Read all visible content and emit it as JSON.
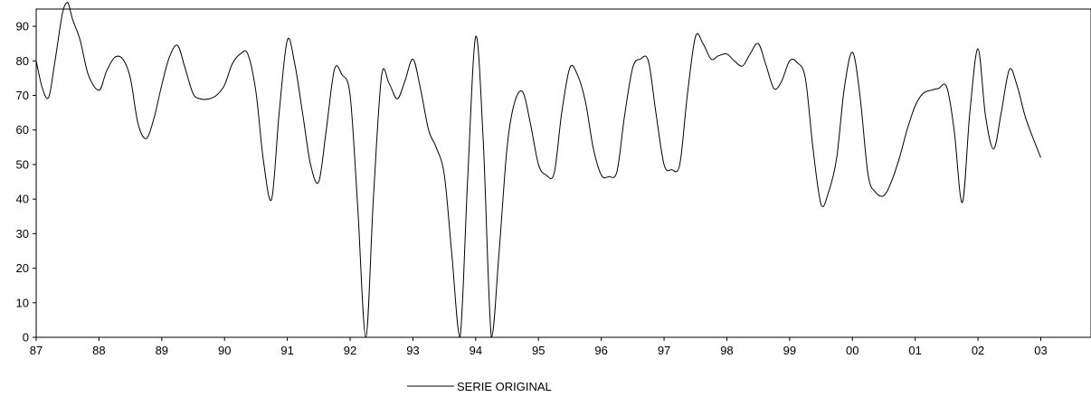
{
  "chart_data": {
    "type": "line",
    "title": "",
    "xlabel": "",
    "ylabel": "",
    "ylim": [
      0,
      95
    ],
    "xlim": [
      1987,
      2003.8
    ],
    "x_ticks": [
      {
        "x": 1987,
        "label": "87"
      },
      {
        "x": 1988,
        "label": "88"
      },
      {
        "x": 1989,
        "label": "89"
      },
      {
        "x": 1990,
        "label": "90"
      },
      {
        "x": 1991,
        "label": "91"
      },
      {
        "x": 1992,
        "label": "92"
      },
      {
        "x": 1993,
        "label": "93"
      },
      {
        "x": 1994,
        "label": "94"
      },
      {
        "x": 1995,
        "label": "95"
      },
      {
        "x": 1996,
        "label": "96"
      },
      {
        "x": 1997,
        "label": "97"
      },
      {
        "x": 1998,
        "label": "98"
      },
      {
        "x": 1999,
        "label": "99"
      },
      {
        "x": 2000,
        "label": "00"
      },
      {
        "x": 2001,
        "label": "01"
      },
      {
        "x": 2002,
        "label": "02"
      },
      {
        "x": 2003,
        "label": "03"
      }
    ],
    "y_ticks": [
      0,
      10,
      20,
      30,
      40,
      50,
      60,
      70,
      80,
      90
    ],
    "grid": false,
    "legend": {
      "position": "bottom-center",
      "entries": [
        "SERIE ORIGINAL"
      ]
    },
    "series": [
      {
        "name": "SERIE ORIGINAL",
        "color": "#000000",
        "x": [
          1987.0,
          1987.1,
          1987.2,
          1987.3,
          1987.42,
          1987.5,
          1987.58,
          1987.7,
          1987.83,
          1988.0,
          1988.12,
          1988.25,
          1988.38,
          1988.5,
          1988.62,
          1988.75,
          1988.87,
          1989.0,
          1989.12,
          1989.25,
          1989.37,
          1989.5,
          1989.62,
          1989.75,
          1989.87,
          1990.0,
          1990.12,
          1990.25,
          1990.37,
          1990.5,
          1990.62,
          1990.75,
          1990.87,
          1991.0,
          1991.12,
          1991.25,
          1991.37,
          1991.5,
          1991.62,
          1991.75,
          1991.87,
          1992.0,
          1992.12,
          1992.25,
          1992.37,
          1992.5,
          1992.62,
          1992.75,
          1992.87,
          1993.0,
          1993.12,
          1993.25,
          1993.37,
          1993.5,
          1993.62,
          1993.75,
          1993.87,
          1994.0,
          1994.12,
          1994.25,
          1994.37,
          1994.5,
          1994.62,
          1994.75,
          1994.87,
          1995.0,
          1995.12,
          1995.25,
          1995.37,
          1995.5,
          1995.62,
          1995.75,
          1995.87,
          1996.0,
          1996.12,
          1996.25,
          1996.37,
          1996.5,
          1996.62,
          1996.75,
          1996.87,
          1997.0,
          1997.12,
          1997.25,
          1997.37,
          1997.5,
          1997.62,
          1997.75,
          1997.87,
          1998.0,
          1998.12,
          1998.25,
          1998.37,
          1998.5,
          1998.62,
          1998.75,
          1998.87,
          1999.0,
          1999.12,
          1999.25,
          1999.37,
          1999.5,
          1999.62,
          1999.75,
          1999.87,
          2000.0,
          2000.12,
          2000.25,
          2000.37,
          2000.5,
          2000.62,
          2000.75,
          2000.87,
          2001.0,
          2001.12,
          2001.25,
          2001.37,
          2001.5,
          2001.62,
          2001.75,
          2001.87,
          2002.0,
          2002.12,
          2002.25,
          2002.37,
          2002.5,
          2002.62,
          2002.75,
          2002.87,
          2003.0
        ],
        "y": [
          80,
          72,
          69.5,
          80,
          94,
          97,
          92,
          86,
          76,
          71.5,
          77,
          81,
          80.5,
          75,
          62,
          57.5,
          63,
          73,
          81,
          84.5,
          78,
          70.5,
          69,
          69,
          70,
          73,
          79,
          82,
          82,
          71,
          51,
          40,
          65,
          86,
          79,
          64,
          50,
          45,
          60,
          77.5,
          76,
          70,
          38,
          0,
          40,
          75.5,
          73.5,
          69,
          74,
          80.5,
          72,
          60,
          55,
          47,
          24,
          0,
          45,
          87,
          57,
          0,
          24,
          55,
          68,
          71,
          62,
          50,
          47,
          47.5,
          65,
          78,
          76,
          68,
          55,
          47,
          46.5,
          48,
          64,
          78,
          80.5,
          80,
          65,
          50,
          48.5,
          50,
          70,
          87,
          85,
          80.5,
          81.5,
          82,
          80,
          78.5,
          82,
          85,
          79,
          72,
          74,
          80,
          79.5,
          75,
          55,
          38.5,
          42,
          52,
          72,
          82.5,
          70,
          47,
          42,
          41,
          45,
          52,
          60,
          67,
          70.5,
          71.5,
          72,
          72.5,
          60,
          39,
          65,
          83.5,
          64,
          54.5,
          65,
          77.5,
          73,
          64,
          58,
          52
        ]
      }
    ]
  }
}
